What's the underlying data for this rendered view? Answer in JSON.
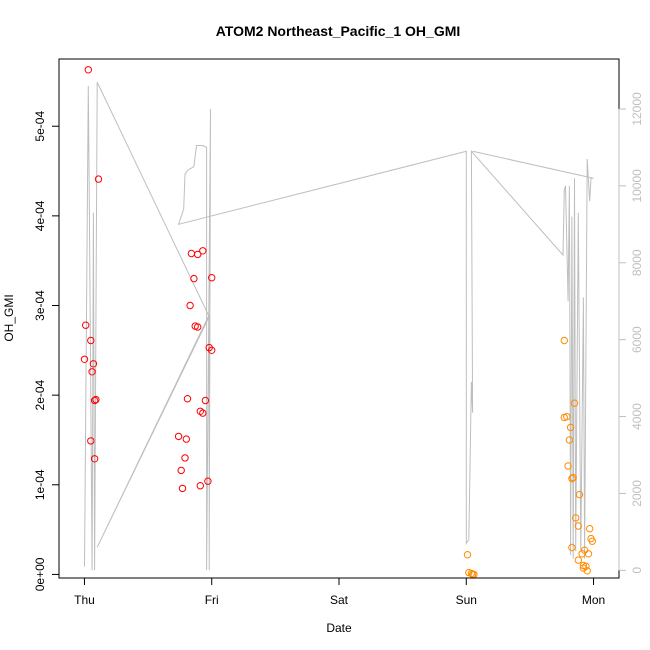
{
  "chart_data": {
    "type": "scatter",
    "title": "ATOM2 Northeast_Pacific_1 OH_GMI",
    "xlabel": "Date",
    "ylabel": "OH_GMI",
    "x_ticks": [
      {
        "label": "Thu",
        "value": 0
      },
      {
        "label": "Fri",
        "value": 1
      },
      {
        "label": "Sat",
        "value": 2
      },
      {
        "label": "Sun",
        "value": 3
      },
      {
        "label": "Mon",
        "value": 4
      }
    ],
    "xlim": [
      -0.2,
      4.2
    ],
    "ylim": [
      -4e-06,
      0.000575
    ],
    "y_ticks": [
      {
        "label": "0e+00",
        "value": 0
      },
      {
        "label": "1e-04",
        "value": 0.0001
      },
      {
        "label": "2e-04",
        "value": 0.0002
      },
      {
        "label": "3e-04",
        "value": 0.0003
      },
      {
        "label": "4e-04",
        "value": 0.0004
      },
      {
        "label": "5e-04",
        "value": 0.0005
      }
    ],
    "y2lim": [
      -200,
      13300
    ],
    "y2_ticks": [
      {
        "label": "0",
        "value": 0
      },
      {
        "label": "2000",
        "value": 2000
      },
      {
        "label": "4000",
        "value": 4000
      },
      {
        "label": "6000",
        "value": 6000
      },
      {
        "label": "8000",
        "value": 8000
      },
      {
        "label": "10000",
        "value": 10000
      },
      {
        "label": "12000",
        "value": 12000
      }
    ],
    "grid": false,
    "colors": {
      "red": "#ff0000",
      "orange": "#ff8c00",
      "line": "#bebebe",
      "axis": "#000000",
      "axis_right": "#bfbfbf"
    },
    "series": [
      {
        "color": "#ff0000",
        "marker": "open-circle",
        "points": [
          [
            0.03,
            0.000563
          ],
          [
            0.11,
            0.000441
          ],
          [
            0.01,
            0.000278
          ],
          [
            0.05,
            0.000261
          ],
          [
            0.0,
            0.00024
          ],
          [
            0.07,
            0.000235
          ],
          [
            0.06,
            0.000226
          ],
          [
            0.09,
            0.000195
          ],
          [
            0.08,
            0.000194
          ],
          [
            0.05,
            0.000149
          ],
          [
            0.08,
            0.000129
          ],
          [
            0.93,
            0.000361
          ],
          [
            0.84,
            0.000358
          ],
          [
            0.89,
            0.000357
          ],
          [
            1.0,
            0.000331
          ],
          [
            0.86,
            0.00033
          ],
          [
            0.83,
            0.0003
          ],
          [
            0.87,
            0.000277
          ],
          [
            0.89,
            0.000276
          ],
          [
            0.98,
            0.000253
          ],
          [
            1.0,
            0.00025
          ],
          [
            0.81,
            0.000196
          ],
          [
            0.95,
            0.000194
          ],
          [
            0.91,
            0.000182
          ],
          [
            0.93,
            0.00018
          ],
          [
            0.74,
            0.000154
          ],
          [
            0.8,
            0.000151
          ],
          [
            0.79,
            0.00013
          ],
          [
            0.76,
            0.000116
          ],
          [
            0.97,
            0.000104
          ],
          [
            0.91,
            9.9e-05
          ],
          [
            0.77,
            9.6e-05
          ]
        ]
      },
      {
        "color": "#ff8c00",
        "marker": "open-circle",
        "points": [
          [
            3.01,
            2.2e-05
          ],
          [
            3.02,
            2e-06
          ],
          [
            3.04,
            1e-06
          ],
          [
            3.05,
            0.0
          ],
          [
            3.06,
            0.0
          ],
          [
            3.77,
            0.000261
          ],
          [
            3.85,
            0.000191
          ],
          [
            3.79,
            0.000176
          ],
          [
            3.77,
            0.000175
          ],
          [
            3.82,
            0.000164
          ],
          [
            3.81,
            0.00015
          ],
          [
            3.8,
            0.000121
          ],
          [
            3.84,
            0.000108
          ],
          [
            3.83,
            0.000107
          ],
          [
            3.89,
            8.9e-05
          ],
          [
            3.86,
            6.3e-05
          ],
          [
            3.88,
            5.4e-05
          ],
          [
            3.97,
            5.1e-05
          ],
          [
            3.98,
            4e-05
          ],
          [
            3.99,
            3.7e-05
          ],
          [
            3.83,
            3e-05
          ],
          [
            3.93,
            2.7e-05
          ],
          [
            3.96,
            2.3e-05
          ],
          [
            3.91,
            2.3e-05
          ],
          [
            3.88,
            1.6e-05
          ],
          [
            3.92,
            1e-05
          ],
          [
            3.94,
            9e-06
          ],
          [
            3.92,
            7e-06
          ],
          [
            3.95,
            4e-06
          ]
        ]
      }
    ],
    "altitude_line": {
      "color": "#bebebe",
      "axis": "right",
      "points": [
        [
          0.0,
          100
        ],
        [
          0.03,
          12600
        ],
        [
          0.04,
          9000
        ],
        [
          0.06,
          0
        ],
        [
          0.07,
          9300
        ],
        [
          0.08,
          0
        ],
        [
          0.1,
          12700
        ],
        [
          0.98,
          6600
        ],
        [
          0.1,
          600
        ],
        [
          0.98,
          6650
        ],
        [
          0.98,
          0
        ],
        [
          0.99,
          12000
        ],
        [
          0.96,
          0
        ],
        [
          0.96,
          11000
        ],
        [
          0.93,
          11050
        ],
        [
          0.88,
          11050
        ],
        [
          0.86,
          10500
        ],
        [
          0.81,
          10400
        ],
        [
          0.79,
          10300
        ],
        [
          0.78,
          9400
        ],
        [
          0.74,
          9000
        ],
        [
          3.0,
          10900
        ],
        [
          3.0,
          700
        ],
        [
          3.02,
          800
        ],
        [
          3.04,
          4900
        ],
        [
          3.05,
          4100
        ],
        [
          3.04,
          10900
        ],
        [
          3.76,
          8200
        ],
        [
          3.77,
          9900
        ],
        [
          3.78,
          10000
        ],
        [
          3.8,
          7000
        ],
        [
          3.81,
          10000
        ],
        [
          3.82,
          400
        ],
        [
          3.83,
          9200
        ],
        [
          3.84,
          300
        ],
        [
          3.85,
          10200
        ],
        [
          3.86,
          500
        ],
        [
          3.88,
          9300
        ],
        [
          3.9,
          500
        ],
        [
          3.92,
          7100
        ],
        [
          3.93,
          300
        ],
        [
          3.95,
          10700
        ],
        [
          3.97,
          9600
        ],
        [
          3.98,
          10200
        ],
        [
          4.0,
          10200
        ],
        [
          3.05,
          10900
        ],
        [
          4.0,
          10200
        ]
      ]
    }
  }
}
